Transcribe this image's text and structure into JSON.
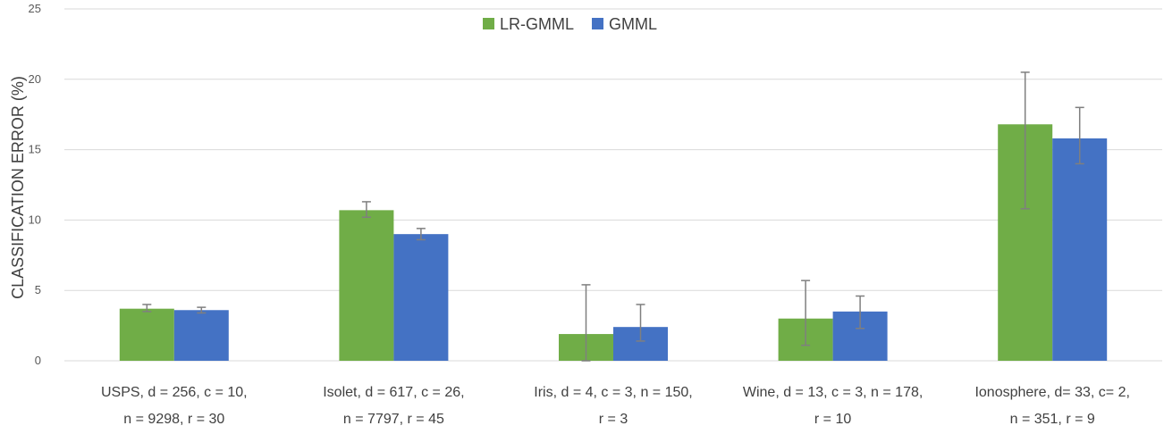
{
  "chart_data": {
    "type": "bar",
    "ylabel": "CLASSIFICATION ERROR (%)",
    "ylim": [
      0,
      25
    ],
    "yticks": [
      0,
      5,
      10,
      15,
      20,
      25
    ],
    "grid": true,
    "legend_position": "top-center",
    "categories": [
      [
        "USPS, d = 256, c = 10,",
        "n = 9298, r = 30"
      ],
      [
        "Isolet, d = 617, c = 26,",
        "n = 7797, r = 45"
      ],
      [
        "Iris, d = 4, c = 3, n = 150,",
        "r = 3"
      ],
      [
        "Wine, d = 13, c = 3, n = 178,",
        "r = 10"
      ],
      [
        "Ionosphere, d= 33, c= 2,",
        "n = 351, r = 9"
      ]
    ],
    "series": [
      {
        "name": "LR-GMML",
        "color": "#70ad47",
        "values": [
          3.7,
          10.7,
          1.9,
          3.0,
          16.8
        ],
        "error_low": [
          3.5,
          10.2,
          0.0,
          1.1,
          10.8
        ],
        "error_high": [
          4.0,
          11.3,
          5.4,
          5.7,
          20.5
        ]
      },
      {
        "name": "GMML",
        "color": "#4472c4",
        "values": [
          3.6,
          9.0,
          2.4,
          3.5,
          15.8
        ],
        "error_low": [
          3.4,
          8.6,
          1.4,
          2.3,
          14.0
        ],
        "error_high": [
          3.8,
          9.4,
          4.0,
          4.6,
          18.0
        ]
      }
    ],
    "colors": {
      "grid": "#d9d9d9",
      "errorbar": "#7f7f7f"
    }
  }
}
